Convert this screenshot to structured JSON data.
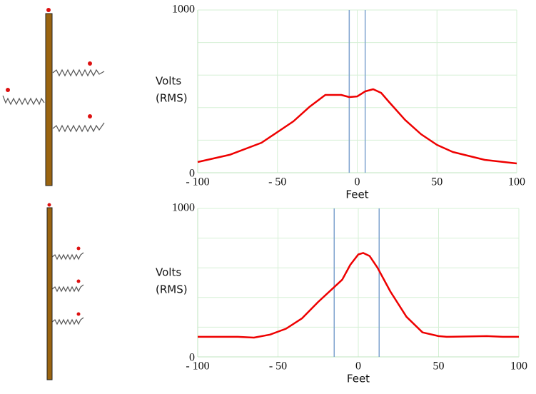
{
  "chart_data": [
    {
      "type": "line",
      "ylabel_lines": [
        "Volts",
        "(RMS)"
      ],
      "xlabel": "Feet",
      "xlim": [
        -100,
        100
      ],
      "ylim": [
        0,
        1000
      ],
      "xticks": [
        {
          "value": -100,
          "label": "- 100"
        },
        {
          "value": -50,
          "label": "- 50"
        },
        0,
        50,
        100
      ],
      "yticks": [
        0,
        1000
      ],
      "ygrid": [
        200,
        400,
        600,
        800
      ],
      "grid": true,
      "markers": [
        -5,
        5
      ],
      "marker_color": "#7fa3cf",
      "x": [
        -100,
        -80,
        -60,
        -40,
        -30,
        -20,
        -10,
        -5,
        0,
        5,
        10,
        15,
        20,
        30,
        40,
        50,
        60,
        80,
        100
      ],
      "series": [
        {
          "color": "#ee0000",
          "values": [
            66,
            110,
            184,
            316,
            404,
            478,
            478,
            465,
            469,
            500,
            513,
            491,
            434,
            325,
            237,
            171,
            127,
            79,
            57
          ]
        }
      ]
    },
    {
      "type": "line",
      "ylabel_lines": [
        "Volts",
        "(RMS)"
      ],
      "xlabel": "Feet",
      "xlim": [
        -100,
        100
      ],
      "ylim": [
        0,
        1000
      ],
      "xticks": [
        {
          "value": -100,
          "label": "- 100"
        },
        {
          "value": -50,
          "label": "- 50"
        },
        0,
        50,
        100
      ],
      "yticks": [
        0,
        1000
      ],
      "ygrid": [
        200,
        400,
        600,
        800
      ],
      "grid": true,
      "markers": [
        -15,
        13
      ],
      "marker_color": "#7fa3cf",
      "x": [
        -100,
        -75,
        -65,
        -55,
        -45,
        -35,
        -25,
        -15,
        -10,
        -5,
        0,
        3,
        7,
        12,
        20,
        30,
        40,
        50,
        55,
        80,
        90,
        100
      ],
      "series": [
        {
          "color": "#ee0000",
          "values": [
            135,
            135,
            130,
            150,
            190,
            260,
            370,
            470,
            520,
            620,
            690,
            700,
            680,
            600,
            440,
            270,
            165,
            140,
            135,
            140,
            135,
            135
          ]
        }
      ]
    }
  ]
}
